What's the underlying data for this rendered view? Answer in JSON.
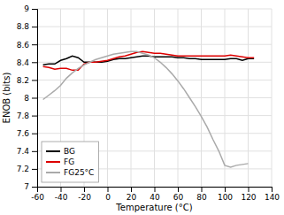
{
  "chart_data": {
    "type": "line",
    "xlabel": "Temperature (°C)",
    "ylabel": "ENOB (bits)",
    "x": [
      -55,
      -50,
      -45,
      -40,
      -35,
      -30,
      -25,
      -20,
      -15,
      -10,
      -5,
      0,
      5,
      10,
      15,
      20,
      25,
      30,
      35,
      40,
      45,
      50,
      55,
      60,
      65,
      70,
      75,
      80,
      85,
      90,
      95,
      100,
      105,
      110,
      115,
      120,
      125
    ],
    "series": [
      {
        "name": "BG",
        "color": "#000000",
        "values": [
          8.37,
          8.38,
          8.38,
          8.42,
          8.44,
          8.47,
          8.45,
          8.4,
          8.4,
          8.4,
          8.4,
          8.41,
          8.43,
          8.44,
          8.44,
          8.45,
          8.46,
          8.47,
          8.47,
          8.46,
          8.46,
          8.46,
          8.46,
          8.45,
          8.45,
          8.44,
          8.44,
          8.43,
          8.43,
          8.43,
          8.43,
          8.43,
          8.44,
          8.44,
          8.42,
          8.44,
          8.44
        ]
      },
      {
        "name": "FG",
        "color": "#dd0000",
        "values": [
          8.35,
          8.34,
          8.32,
          8.33,
          8.33,
          8.31,
          8.31,
          8.38,
          8.4,
          8.4,
          8.41,
          8.42,
          8.44,
          8.46,
          8.47,
          8.49,
          8.51,
          8.52,
          8.51,
          8.5,
          8.5,
          8.49,
          8.48,
          8.47,
          8.47,
          8.47,
          8.47,
          8.47,
          8.47,
          8.47,
          8.47,
          8.47,
          8.48,
          8.47,
          8.46,
          8.45,
          8.45
        ]
      },
      {
        "name": "FG25°C",
        "color": "#aaaaaa",
        "values": [
          7.98,
          8.03,
          8.08,
          8.14,
          8.22,
          8.28,
          8.33,
          8.37,
          8.4,
          8.43,
          8.45,
          8.47,
          8.49,
          8.5,
          8.51,
          8.52,
          8.52,
          8.5,
          8.48,
          8.45,
          8.4,
          8.34,
          8.27,
          8.19,
          8.1,
          8.0,
          7.9,
          7.79,
          7.67,
          7.53,
          7.4,
          7.24,
          7.22,
          7.24,
          7.25,
          7.26,
          null
        ]
      }
    ],
    "xlim": [
      -60,
      140
    ],
    "ylim": [
      7.0,
      9.0
    ],
    "xticks": [
      -60,
      -40,
      -20,
      0,
      20,
      40,
      60,
      80,
      100,
      120,
      140
    ],
    "yticks": [
      7.0,
      7.2,
      7.4,
      7.6,
      7.8,
      8.0,
      8.2,
      8.4,
      8.6,
      8.8,
      9.0
    ],
    "grid": true,
    "legend": "lower left"
  }
}
